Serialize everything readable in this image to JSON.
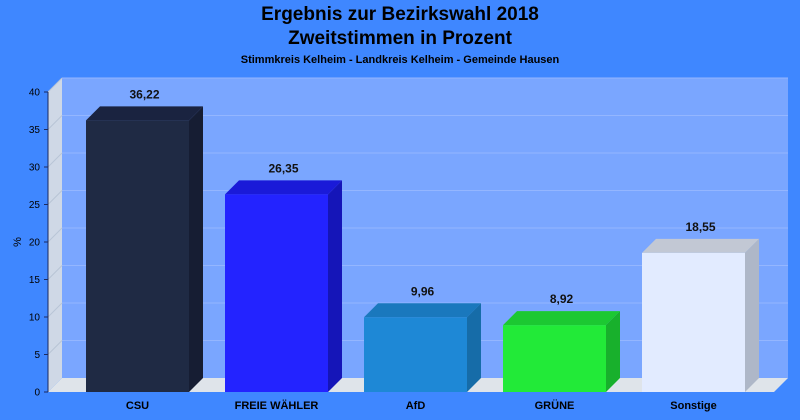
{
  "header": {
    "title": "Ergebnis zur Bezirkswahl 2018",
    "subtitle": "Zweitstimmen in Prozent",
    "region": "Stimmkreis Kelheim - Landkreis Kelheim - Gemeinde Hausen"
  },
  "chart_data": {
    "type": "bar",
    "title": "Ergebnis zur Bezirkswahl 2018",
    "subtitle": "Zweitstimmen in Prozent",
    "xlabel": "",
    "ylabel": "%",
    "ylim": [
      0,
      40
    ],
    "yticks": [
      0,
      5,
      10,
      15,
      20,
      25,
      30,
      35,
      40
    ],
    "grid": true,
    "categories": [
      "CSU",
      "FREIE WÄHLER",
      "AfD",
      "GRÜNE",
      "Sonstige"
    ],
    "values": [
      36.22,
      26.35,
      9.96,
      8.92,
      18.55
    ],
    "value_labels": [
      "36,22",
      "26,35",
      "9,96",
      "8,92",
      "18,55"
    ],
    "colors": [
      "#1f2a44",
      "#2323ff",
      "#1e88d6",
      "#22ea38",
      "#e2ebff"
    ],
    "top_colors": [
      "#1a2340",
      "#1a1ad8",
      "#1a78bd",
      "#1cc832",
      "#c2c8d4"
    ],
    "side_colors": [
      "#161d33",
      "#1515b8",
      "#166ca8",
      "#18b02c",
      "#aeb7c8"
    ]
  }
}
